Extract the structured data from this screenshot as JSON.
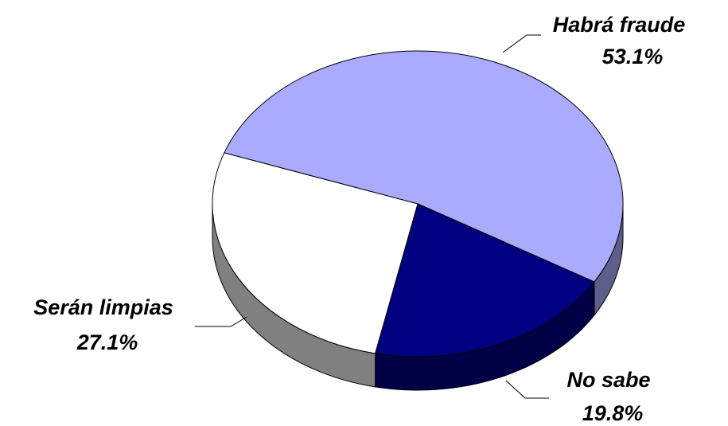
{
  "chart_data": {
    "type": "pie",
    "categories": [
      "Habrá fraude",
      "No sabe",
      "Serán limpias"
    ],
    "values": [
      53.1,
      19.8,
      27.1
    ],
    "value_labels": [
      "53.1%",
      "19.8%",
      "27.1%"
    ],
    "colors": [
      "#aaaaff",
      "#000080",
      "#ffffff"
    ]
  }
}
